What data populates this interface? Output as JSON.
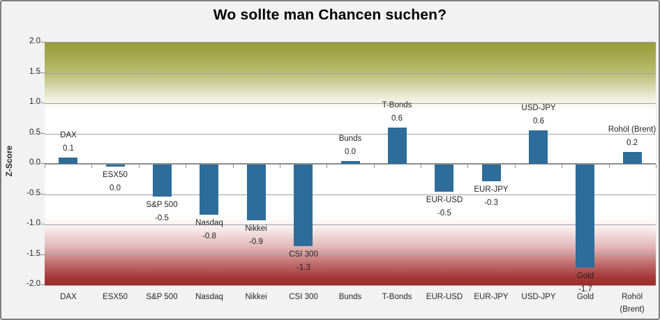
{
  "title": "Wo sollte man Chancen suchen?",
  "colors": {
    "frame_background": "#F2F2F2",
    "frame_border": "#7F7F7F",
    "bar": "#2E6D99",
    "upper_zone": "#989C3A",
    "lower_zone": "#9D2B2B",
    "gridline": "#A0A0A0",
    "zero_line": "#8C8C8C",
    "text": "#262626"
  },
  "chart_data": {
    "type": "bar",
    "title": "Wo sollte man Chancen suchen?",
    "xlabel": "",
    "ylabel": "Z-Score",
    "ylim": [
      -2.0,
      2.0
    ],
    "ytick_step": 0.5,
    "yticks": [
      "2.0",
      "1.5",
      "1.0",
      "0.5",
      "0.0",
      "-0.5",
      "-1.0",
      "-1.5",
      "-2.0"
    ],
    "grid": true,
    "legend": false,
    "zones": {
      "upper_gradient": "olive green fading to white from +2.0 down to about +1.0",
      "lower_gradient": "white fading to dark red from about -1.0 down to -2.0"
    },
    "categories": [
      "DAX",
      "ESX50",
      "S&P 500",
      "Nasdaq",
      "Nikkei",
      "CSI 300",
      "Bunds",
      "T-Bonds",
      "EUR-USD",
      "EUR-JPY",
      "USD-JPY",
      "Gold",
      "Rohöl (Brent)"
    ],
    "axis_labels": [
      "DAX",
      "ESX50",
      "S&P 500",
      "Nasdaq",
      "Nikkei",
      "CSI 300",
      "Bunds",
      "T-Bonds",
      "EUR-USD",
      "EUR-JPY",
      "USD-JPY",
      "Gold",
      "Rohöl\n(Brent)"
    ],
    "values": [
      0.1,
      0.0,
      -0.5,
      -0.8,
      -0.9,
      -1.3,
      0.0,
      0.6,
      -0.5,
      -0.3,
      0.6,
      -1.7,
      0.2
    ],
    "value_labels": [
      "0.1",
      "0.0",
      "-0.5",
      "-0.8",
      "-0.9",
      "-1.3",
      "0.0",
      "0.6",
      "-0.5",
      "-0.3",
      "0.6",
      "-1.7",
      "0.2"
    ],
    "rendered_values": [
      0.1,
      -0.04,
      -0.53,
      -0.83,
      -0.92,
      -1.34,
      0.05,
      0.6,
      -0.45,
      -0.28,
      0.55,
      -1.7,
      0.2
    ]
  }
}
